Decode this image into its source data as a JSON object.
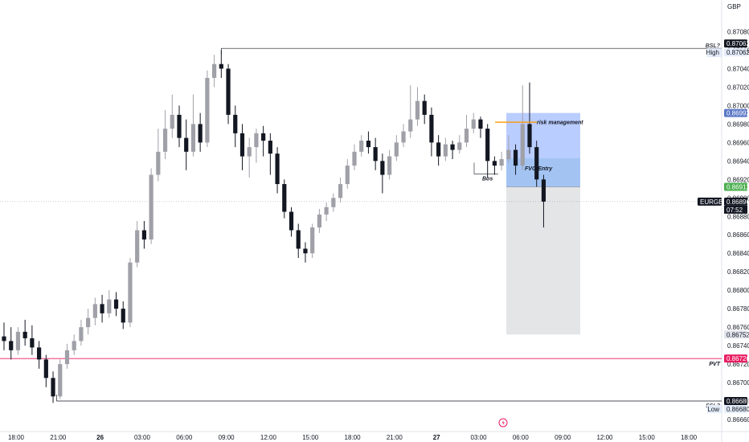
{
  "chart_data": {
    "type": "candlestick",
    "currency": "GBP",
    "symbol": "EURGBP",
    "countdown": "07:52",
    "y_range": [
      0.8666,
      0.8709
    ],
    "y_ticks": [
      "0.87080",
      "0.87060",
      "0.87040",
      "0.87020",
      "0.87000",
      "0.86980",
      "0.86960",
      "0.86940",
      "0.86920",
      "0.86900",
      "0.86880",
      "0.86860",
      "0.86840",
      "0.86820",
      "0.86800",
      "0.86780",
      "0.86760",
      "0.86740",
      "0.86720",
      "0.86700",
      "0.86680",
      "0.86660"
    ],
    "x_ticks": [
      {
        "label": "18:00",
        "bold": false,
        "i": 0
      },
      {
        "label": "21:00",
        "bold": false,
        "i": 6
      },
      {
        "label": "26",
        "bold": true,
        "i": 12
      },
      {
        "label": "03:00",
        "bold": false,
        "i": 18
      },
      {
        "label": "06:00",
        "bold": false,
        "i": 24
      },
      {
        "label": "09:00",
        "bold": false,
        "i": 30
      },
      {
        "label": "12:00",
        "bold": false,
        "i": 36
      },
      {
        "label": "15:00",
        "bold": false,
        "i": 42
      },
      {
        "label": "18:00",
        "bold": false,
        "i": 48
      },
      {
        "label": "21:00",
        "bold": false,
        "i": 54
      },
      {
        "label": "27",
        "bold": true,
        "i": 60
      },
      {
        "label": "03:00",
        "bold": false,
        "i": 66
      },
      {
        "label": "06:00",
        "bold": false,
        "i": 72
      },
      {
        "label": "09:00",
        "bold": false,
        "i": 78
      },
      {
        "label": "12:00",
        "bold": false,
        "i": 84
      },
      {
        "label": "15:00",
        "bold": false,
        "i": 90
      },
      {
        "label": "18:00",
        "bold": false,
        "i": 96
      }
    ],
    "levels": [
      {
        "name": "High",
        "price": 0.87062,
        "price_label": "0.87062",
        "annotation": "BSL?",
        "color": "#131722"
      },
      {
        "name": "Low",
        "price": 0.8668,
        "price_label": "0.86680",
        "annotation": "SSL?",
        "color": "#131722"
      },
      {
        "name": "PVT",
        "price": 0.86726,
        "price_label": "0.86726",
        "annotation": "PVT",
        "color": "#e91e63"
      }
    ],
    "current_price": {
      "price": 0.86896,
      "label": "0.86896"
    },
    "position": {
      "target_price": 0.86992,
      "target_label": "0.86992",
      "entry_price": 0.86912,
      "entry_label": "0.86912",
      "stop_price": 0.86752,
      "stop_label": "0.86752"
    },
    "annotations": {
      "risk": "risk management",
      "fvg": "FVG Entry",
      "bos": "Bos"
    },
    "candles": [
      [
        0.8675,
        0.86745,
        0.86765,
        0.86735
      ],
      [
        0.86745,
        0.86735,
        0.8676,
        0.86725
      ],
      [
        0.86735,
        0.86755,
        0.8676,
        0.8673
      ],
      [
        0.86755,
        0.86748,
        0.86768,
        0.8674
      ],
      [
        0.86748,
        0.86738,
        0.86762,
        0.8673
      ],
      [
        0.86738,
        0.86725,
        0.86745,
        0.86715
      ],
      [
        0.86725,
        0.86705,
        0.8673,
        0.86695
      ],
      [
        0.86705,
        0.86685,
        0.86712,
        0.86678
      ],
      [
        0.86685,
        0.8672,
        0.86725,
        0.86682
      ],
      [
        0.8672,
        0.86735,
        0.86742,
        0.86715
      ],
      [
        0.86735,
        0.86745,
        0.86752,
        0.8673
      ],
      [
        0.86745,
        0.8676,
        0.86768,
        0.8674
      ],
      [
        0.8676,
        0.8677,
        0.8678,
        0.86752
      ],
      [
        0.8677,
        0.86785,
        0.86792,
        0.86762
      ],
      [
        0.86785,
        0.86775,
        0.86795,
        0.86765
      ],
      [
        0.86775,
        0.8679,
        0.868,
        0.8677
      ],
      [
        0.8679,
        0.8678,
        0.86798,
        0.86772
      ],
      [
        0.8678,
        0.86765,
        0.86788,
        0.86758
      ],
      [
        0.86765,
        0.8683,
        0.86835,
        0.8676
      ],
      [
        0.8683,
        0.86865,
        0.86875,
        0.86825
      ],
      [
        0.86865,
        0.86855,
        0.86875,
        0.86845
      ],
      [
        0.86855,
        0.86925,
        0.86932,
        0.8685
      ],
      [
        0.86925,
        0.8695,
        0.86975,
        0.86918
      ],
      [
        0.8695,
        0.86975,
        0.86995,
        0.86942
      ],
      [
        0.86975,
        0.8699,
        0.87012,
        0.86965
      ],
      [
        0.8699,
        0.86965,
        0.87,
        0.86955
      ],
      [
        0.86965,
        0.8695,
        0.86985,
        0.8693
      ],
      [
        0.8695,
        0.8698,
        0.87012,
        0.86945
      ],
      [
        0.8698,
        0.8696,
        0.86992,
        0.8695
      ],
      [
        0.8696,
        0.8703,
        0.87038,
        0.86955
      ],
      [
        0.8703,
        0.87045,
        0.87055,
        0.8702
      ],
      [
        0.87045,
        0.8704,
        0.8706,
        0.8703
      ],
      [
        0.8704,
        0.8699,
        0.87045,
        0.8698
      ],
      [
        0.8699,
        0.8697,
        0.87,
        0.86955
      ],
      [
        0.8697,
        0.86945,
        0.8698,
        0.8693
      ],
      [
        0.86945,
        0.86955,
        0.86965,
        0.86922
      ],
      [
        0.86955,
        0.8697,
        0.86975,
        0.86938
      ],
      [
        0.8697,
        0.86962,
        0.86978,
        0.86945
      ],
      [
        0.86962,
        0.86948,
        0.8697,
        0.86925
      ],
      [
        0.86948,
        0.86915,
        0.86955,
        0.86905
      ],
      [
        0.86915,
        0.86885,
        0.8692,
        0.86878
      ],
      [
        0.86885,
        0.86865,
        0.8689,
        0.86858
      ],
      [
        0.86865,
        0.86845,
        0.86872,
        0.86835
      ],
      [
        0.86845,
        0.8684,
        0.86852,
        0.8683
      ],
      [
        0.8684,
        0.86868,
        0.86872,
        0.86835
      ],
      [
        0.86868,
        0.86882,
        0.86888,
        0.86862
      ],
      [
        0.86882,
        0.8689,
        0.86895,
        0.86875
      ],
      [
        0.8689,
        0.869,
        0.86905,
        0.86885
      ],
      [
        0.869,
        0.86915,
        0.86922,
        0.86895
      ],
      [
        0.86915,
        0.86935,
        0.86942,
        0.8691
      ],
      [
        0.86935,
        0.8695,
        0.86958,
        0.8693
      ],
      [
        0.8695,
        0.86962,
        0.86968,
        0.86945
      ],
      [
        0.86962,
        0.86955,
        0.86972,
        0.86948
      ],
      [
        0.86955,
        0.8694,
        0.86965,
        0.8693
      ],
      [
        0.8694,
        0.86925,
        0.86948,
        0.86905
      ],
      [
        0.86925,
        0.86945,
        0.86952,
        0.8692
      ],
      [
        0.86945,
        0.8696,
        0.86968,
        0.8694
      ],
      [
        0.8696,
        0.86972,
        0.8698,
        0.86955
      ],
      [
        0.86972,
        0.86985,
        0.87022,
        0.86965
      ],
      [
        0.86985,
        0.87005,
        0.8702,
        0.86978
      ],
      [
        0.87005,
        0.8699,
        0.87012,
        0.8698
      ],
      [
        0.8699,
        0.8696,
        0.86998,
        0.86945
      ],
      [
        0.8696,
        0.86945,
        0.86968,
        0.86935
      ],
      [
        0.86945,
        0.86958,
        0.86965,
        0.8694
      ],
      [
        0.86958,
        0.86952,
        0.86962,
        0.86942
      ],
      [
        0.86952,
        0.8696,
        0.86968,
        0.86948
      ],
      [
        0.8696,
        0.86975,
        0.8699,
        0.86955
      ],
      [
        0.86975,
        0.86985,
        0.86992,
        0.8697
      ],
      [
        0.86985,
        0.86975,
        0.86988,
        0.86965
      ],
      [
        0.86975,
        0.8694,
        0.8698,
        0.86922
      ],
      [
        0.8694,
        0.86935,
        0.86945,
        0.86925
      ],
      [
        0.86935,
        0.86942,
        0.8695,
        0.8693
      ],
      [
        0.86942,
        0.86952,
        0.86968,
        0.86938
      ],
      [
        0.86952,
        0.86935,
        0.86958,
        0.86925
      ],
      [
        0.86935,
        0.8698,
        0.87022,
        0.8693
      ],
      [
        0.8698,
        0.86955,
        0.87025,
        0.86948
      ],
      [
        0.86955,
        0.8692,
        0.86962,
        0.86912
      ],
      [
        0.8692,
        0.86896,
        0.86925,
        0.86868
      ]
    ]
  }
}
